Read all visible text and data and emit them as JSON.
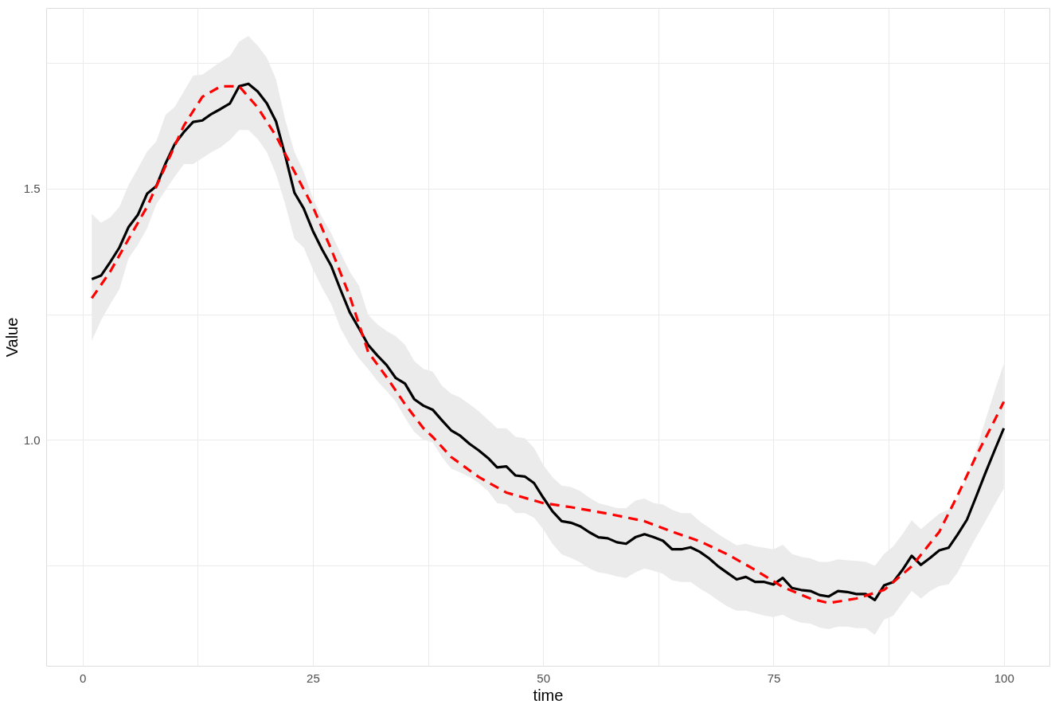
{
  "chart_data": {
    "type": "line",
    "xlabel": "time",
    "ylabel": "Value",
    "x": [
      1,
      2,
      3,
      4,
      5,
      6,
      7,
      8,
      9,
      10,
      11,
      12,
      13,
      14,
      15,
      16,
      17,
      18,
      19,
      20,
      21,
      22,
      23,
      24,
      25,
      26,
      27,
      28,
      29,
      30,
      31,
      32,
      33,
      34,
      35,
      36,
      37,
      38,
      39,
      40,
      41,
      42,
      43,
      44,
      45,
      46,
      47,
      48,
      49,
      50,
      51,
      52,
      53,
      54,
      55,
      56,
      57,
      58,
      59,
      60,
      61,
      62,
      63,
      64,
      65,
      66,
      67,
      68,
      69,
      70,
      71,
      72,
      73,
      74,
      75,
      76,
      77,
      78,
      79,
      80,
      81,
      82,
      83,
      84,
      85,
      86,
      87,
      88,
      89,
      90,
      91,
      92,
      93,
      94,
      95,
      96,
      97,
      98,
      99,
      100
    ],
    "series": [
      {
        "color": "#000000",
        "line_style": "solid",
        "values": [
          1.32,
          1.327,
          1.354,
          1.383,
          1.424,
          1.448,
          1.49,
          1.505,
          1.55,
          1.589,
          1.613,
          1.633,
          1.636,
          1.649,
          1.659,
          1.67,
          1.704,
          1.709,
          1.694,
          1.67,
          1.634,
          1.566,
          1.492,
          1.461,
          1.416,
          1.379,
          1.346,
          1.299,
          1.254,
          1.222,
          1.189,
          1.168,
          1.149,
          1.123,
          1.112,
          1.081,
          1.068,
          1.06,
          1.039,
          1.019,
          1.008,
          0.992,
          0.979,
          0.964,
          0.945,
          0.947,
          0.929,
          0.927,
          0.914,
          0.885,
          0.858,
          0.838,
          0.835,
          0.828,
          0.816,
          0.806,
          0.804,
          0.796,
          0.793,
          0.806,
          0.812,
          0.806,
          0.799,
          0.782,
          0.782,
          0.786,
          0.777,
          0.764,
          0.748,
          0.735,
          0.722,
          0.727,
          0.717,
          0.717,
          0.712,
          0.725,
          0.705,
          0.701,
          0.699,
          0.691,
          0.688,
          0.699,
          0.697,
          0.693,
          0.693,
          0.681,
          0.71,
          0.717,
          0.741,
          0.769,
          0.751,
          0.765,
          0.78,
          0.785,
          0.812,
          0.841,
          0.887,
          0.934,
          0.979,
          1.023
        ],
        "lower": [
          1.197,
          1.238,
          1.27,
          1.3,
          1.362,
          1.388,
          1.421,
          1.469,
          1.497,
          1.524,
          1.549,
          1.549,
          1.561,
          1.573,
          1.583,
          1.597,
          1.617,
          1.617,
          1.599,
          1.573,
          1.529,
          1.469,
          1.4,
          1.383,
          1.34,
          1.303,
          1.27,
          1.222,
          1.189,
          1.162,
          1.141,
          1.117,
          1.097,
          1.076,
          1.044,
          1.016,
          1.0,
          0.995,
          0.966,
          0.943,
          0.935,
          0.926,
          0.914,
          0.898,
          0.874,
          0.871,
          0.854,
          0.854,
          0.845,
          0.822,
          0.793,
          0.772,
          0.765,
          0.756,
          0.744,
          0.736,
          0.733,
          0.728,
          0.725,
          0.736,
          0.744,
          0.739,
          0.733,
          0.72,
          0.717,
          0.717,
          0.704,
          0.693,
          0.68,
          0.668,
          0.66,
          0.66,
          0.655,
          0.65,
          0.647,
          0.652,
          0.642,
          0.636,
          0.634,
          0.626,
          0.623,
          0.628,
          0.628,
          0.625,
          0.625,
          0.612,
          0.642,
          0.65,
          0.675,
          0.699,
          0.684,
          0.699,
          0.709,
          0.712,
          0.736,
          0.773,
          0.806,
          0.838,
          0.871,
          0.903
        ],
        "upper": [
          1.45,
          1.432,
          1.443,
          1.464,
          1.508,
          1.54,
          1.574,
          1.594,
          1.647,
          1.663,
          1.694,
          1.725,
          1.727,
          1.74,
          1.753,
          1.764,
          1.793,
          1.804,
          1.785,
          1.761,
          1.718,
          1.637,
          1.573,
          1.534,
          1.481,
          1.443,
          1.411,
          1.372,
          1.335,
          1.307,
          1.249,
          1.23,
          1.217,
          1.206,
          1.189,
          1.157,
          1.141,
          1.136,
          1.108,
          1.092,
          1.084,
          1.071,
          1.057,
          1.04,
          1.023,
          1.023,
          1.006,
          1.003,
          0.984,
          0.95,
          0.926,
          0.909,
          0.906,
          0.898,
          0.885,
          0.874,
          0.869,
          0.864,
          0.864,
          0.879,
          0.883,
          0.874,
          0.871,
          0.861,
          0.854,
          0.854,
          0.838,
          0.825,
          0.812,
          0.801,
          0.79,
          0.793,
          0.788,
          0.785,
          0.782,
          0.791,
          0.773,
          0.767,
          0.764,
          0.757,
          0.757,
          0.762,
          0.76,
          0.759,
          0.757,
          0.749,
          0.773,
          0.788,
          0.812,
          0.84,
          0.822,
          0.838,
          0.853,
          0.861,
          0.882,
          0.926,
          0.979,
          1.039,
          1.097,
          1.152
        ]
      },
      {
        "color": "#ff0000",
        "line_style": "dashed",
        "x": [
          1,
          3,
          5,
          7,
          9,
          11,
          13,
          15,
          17,
          19,
          21,
          23,
          25,
          27,
          29,
          31,
          33,
          35,
          37,
          38,
          40,
          43,
          46,
          50,
          53,
          57,
          61,
          64,
          67,
          70,
          73,
          76,
          79,
          81,
          84,
          87,
          90,
          93,
          95,
          97,
          99,
          100
        ],
        "values": [
          1.282,
          1.335,
          1.4,
          1.464,
          1.545,
          1.626,
          1.683,
          1.704,
          1.704,
          1.662,
          1.605,
          1.534,
          1.464,
          1.379,
          1.286,
          1.175,
          1.125,
          1.071,
          1.023,
          1.006,
          0.966,
          0.926,
          0.895,
          0.874,
          0.866,
          0.853,
          0.838,
          0.817,
          0.798,
          0.772,
          0.741,
          0.707,
          0.684,
          0.675,
          0.684,
          0.701,
          0.748,
          0.817,
          0.89,
          0.968,
          1.039,
          1.076
        ]
      }
    ],
    "xlim": [
      -3.95,
      104.95
    ],
    "ylim": [
      0.55,
      1.86
    ],
    "xticks": [
      0,
      {
        "value": 12.5,
        "label": null
      },
      25,
      {
        "value": 37.5,
        "label": null
      },
      50,
      {
        "value": 62.5,
        "label": null
      },
      75,
      {
        "value": 87.5,
        "label": null
      },
      100
    ],
    "yticks": [
      {
        "value": 0.75,
        "label": null
      },
      {
        "value": 1,
        "label": "1.0"
      },
      {
        "value": 1.25,
        "label": null
      },
      {
        "value": 1.5,
        "label": "1.5"
      },
      {
        "value": 1.75,
        "label": null
      }
    ],
    "grid": true
  }
}
